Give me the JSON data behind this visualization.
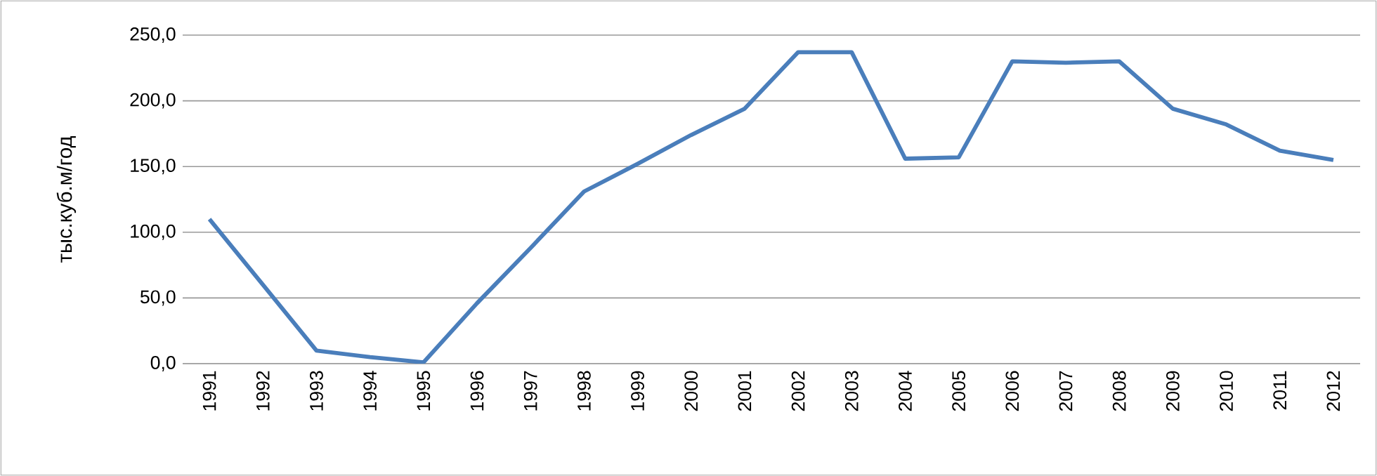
{
  "chart_data": {
    "type": "line",
    "ylabel": "тыс.куб.м/год",
    "categories": [
      "1991",
      "1992",
      "1993",
      "1994",
      "1995",
      "1996",
      "1997",
      "1998",
      "1999",
      "2000",
      "2001",
      "2002",
      "2003",
      "2004",
      "2005",
      "2006",
      "2007",
      "2008",
      "2009",
      "2010",
      "2011",
      "2012"
    ],
    "series": [
      {
        "color": "#4a7ebb",
        "values": [
          110,
          60,
          10,
          5,
          1,
          46,
          88,
          131,
          152,
          174,
          194,
          237,
          237,
          156,
          157,
          230,
          229,
          230,
          194,
          182,
          162,
          155
        ]
      }
    ],
    "ylim": [
      0,
      250
    ],
    "yticks": [
      {
        "value": 0,
        "label": "0,0"
      },
      {
        "value": 50,
        "label": "50,0"
      },
      {
        "value": 100,
        "label": "100,0"
      },
      {
        "value": 150,
        "label": "150,0"
      },
      {
        "value": 200,
        "label": "200,0"
      },
      {
        "value": 250,
        "label": "250,0"
      }
    ],
    "grid": "y",
    "marker": "none",
    "line_style": "solid"
  }
}
